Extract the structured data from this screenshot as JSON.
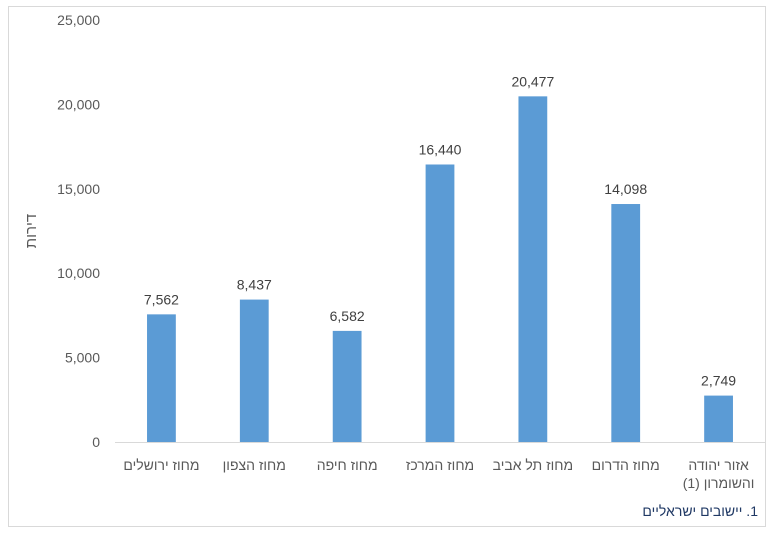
{
  "chart_data": {
    "type": "bar",
    "categories": [
      "מחוז ירושלים",
      "מחוז הצפון",
      "מחוז חיפה",
      "מחוז המרכז",
      "מחוז תל אביב",
      "מחוז הדרום",
      "אזור יהודה והשומרון (1)"
    ],
    "category_lines": [
      [
        "מחוז ירושלים"
      ],
      [
        "מחוז הצפון"
      ],
      [
        "מחוז חיפה"
      ],
      [
        "מחוז המרכז"
      ],
      [
        "מחוז תל אביב"
      ],
      [
        "מחוז הדרום"
      ],
      [
        "אזור יהודה",
        "והשומרון (1)"
      ]
    ],
    "values": [
      7562,
      8437,
      6582,
      16440,
      20477,
      14098,
      2749
    ],
    "value_labels": [
      "7,562",
      "8,437",
      "6,582",
      "16,440",
      "20,477",
      "14,098",
      "2,749"
    ],
    "ylabel": "דירות",
    "ylim": [
      0,
      25000
    ],
    "yticks": [
      0,
      5000,
      10000,
      15000,
      20000,
      25000
    ],
    "ytick_labels": [
      "0",
      "5,000",
      "10,000",
      "15,000",
      "20,000",
      "25,000"
    ],
    "grid": false,
    "bar_color": "#5b9bd5"
  },
  "footnote": "1. יישובים ישראליים"
}
